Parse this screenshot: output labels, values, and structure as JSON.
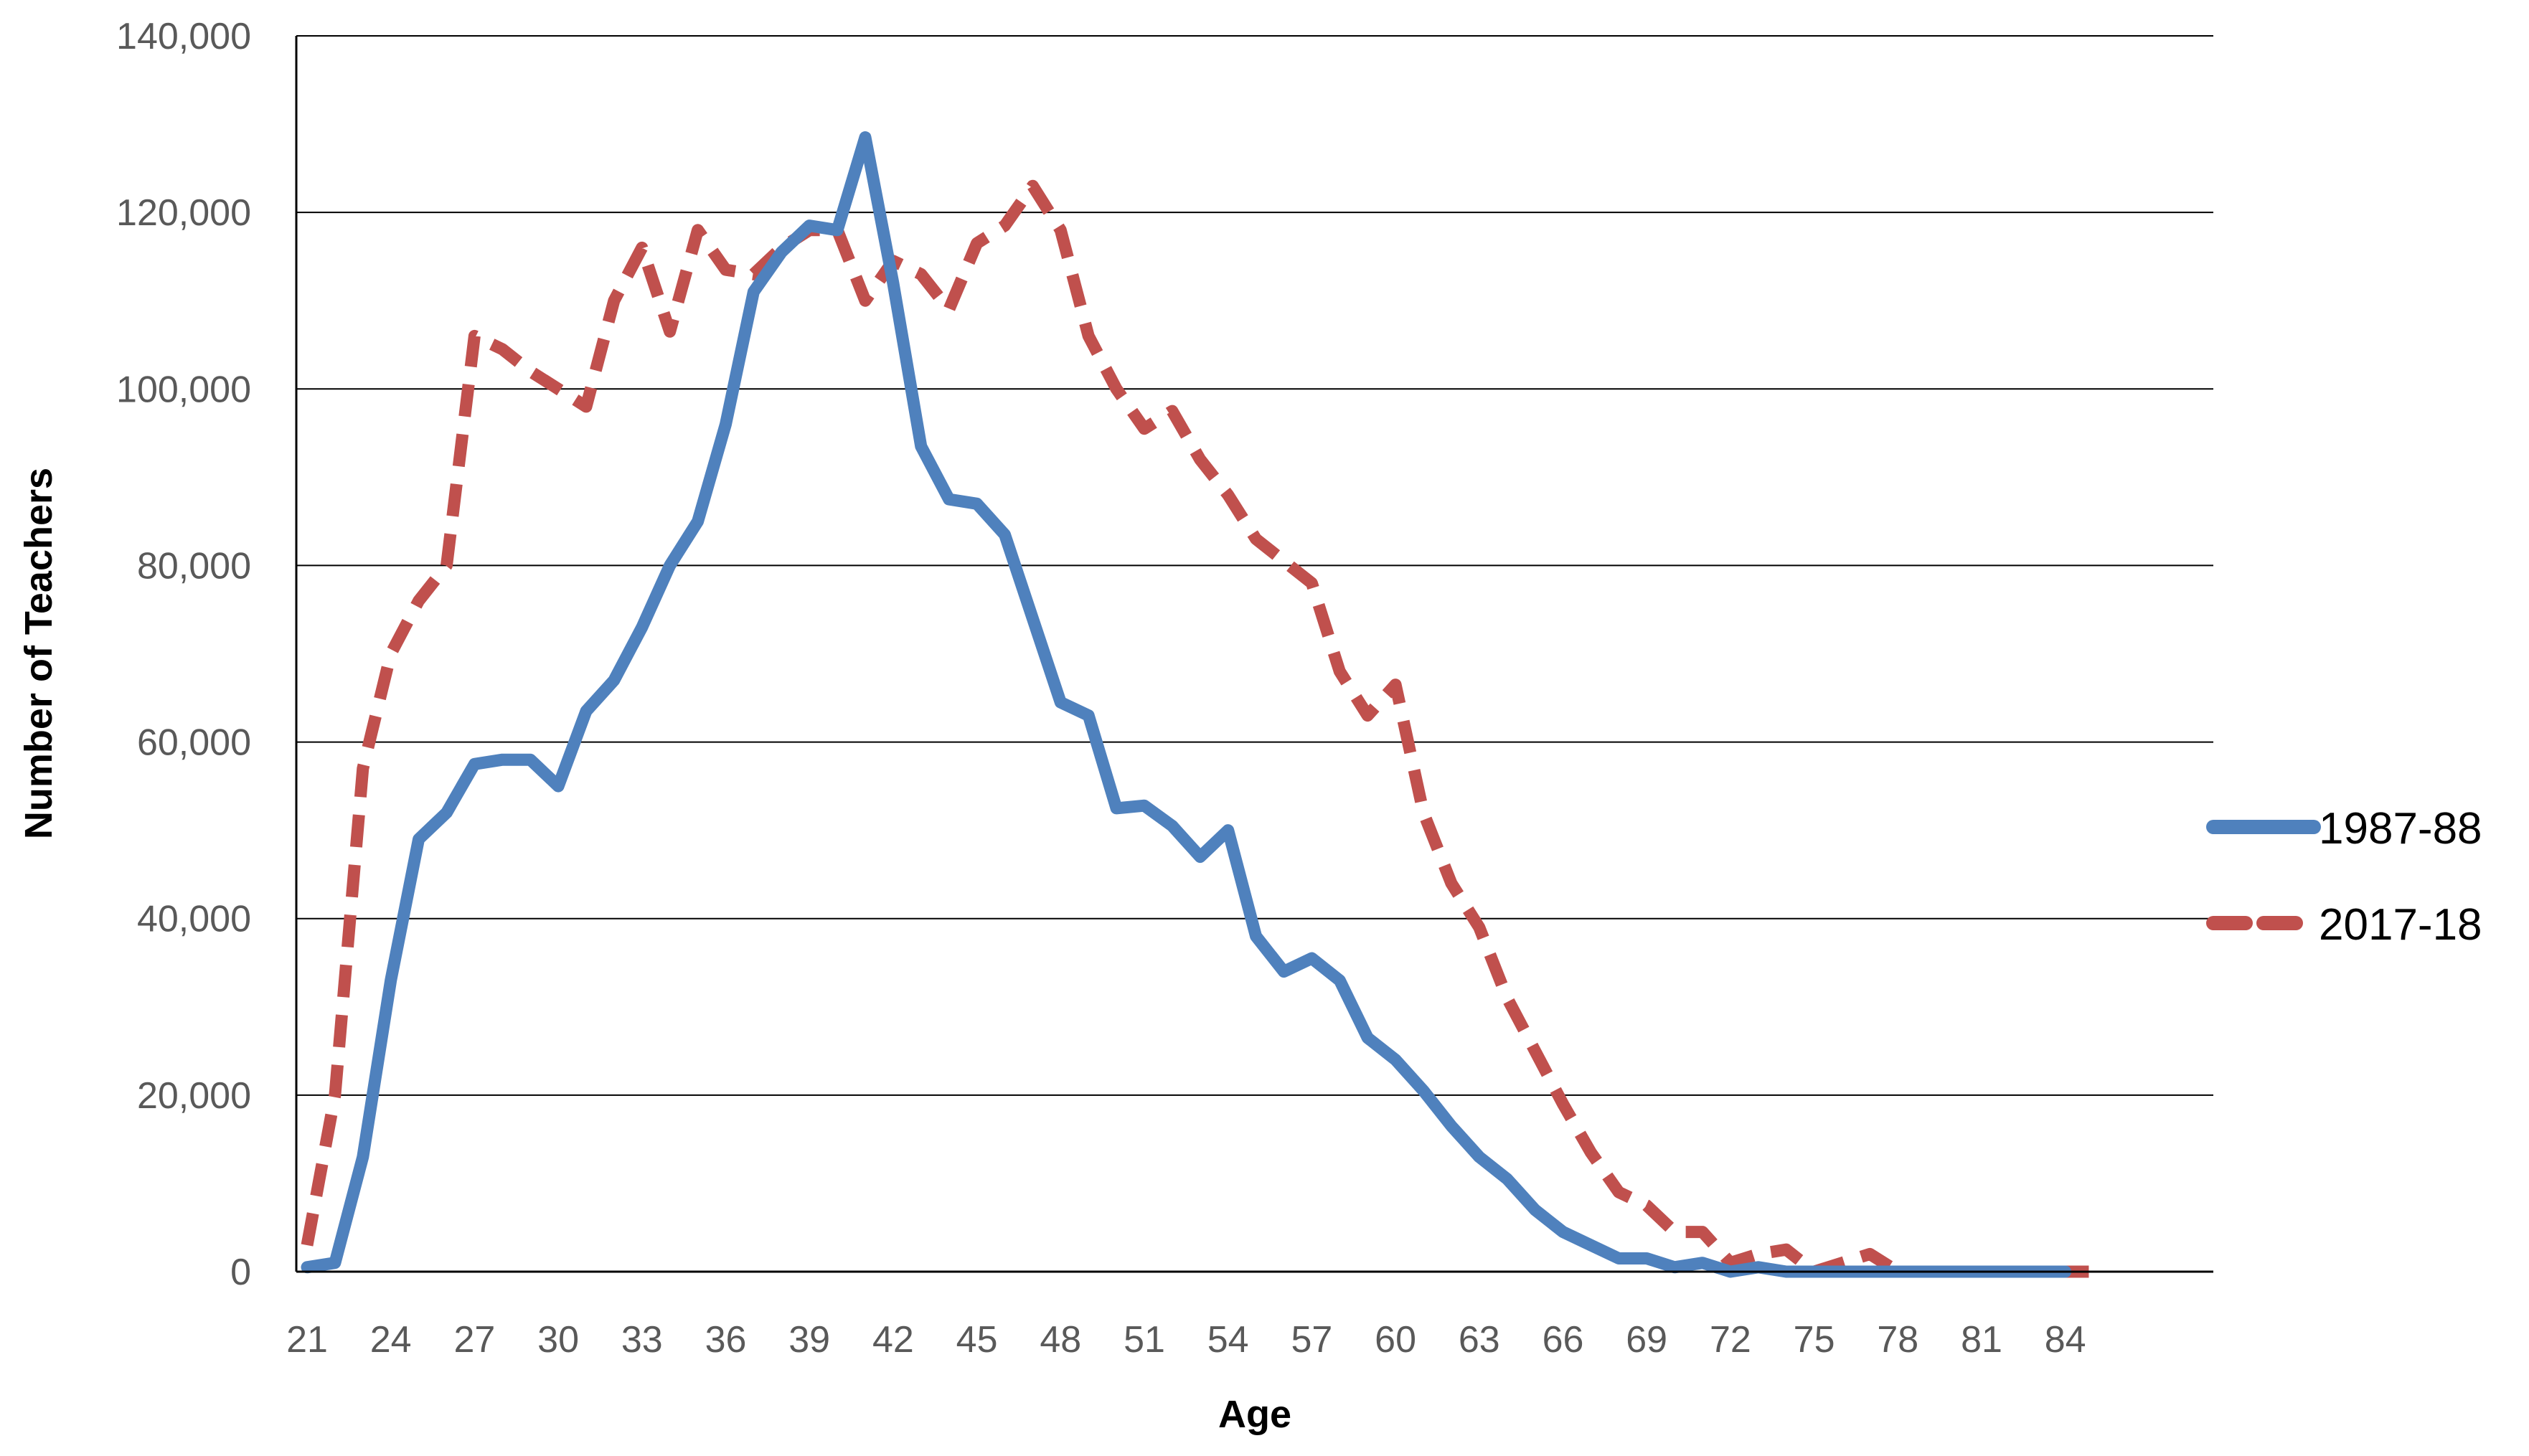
{
  "chart_data": {
    "type": "line",
    "title": "",
    "xlabel": "Age",
    "ylabel": "Number of Teachers",
    "xlim": [
      21,
      85
    ],
    "ylim": [
      0,
      140000
    ],
    "grid": true,
    "legend_position": "right",
    "x_ticks": [
      21,
      24,
      27,
      30,
      33,
      36,
      39,
      42,
      45,
      48,
      51,
      54,
      57,
      60,
      63,
      66,
      69,
      72,
      75,
      78,
      81,
      84
    ],
    "y_ticks": [
      0,
      20000,
      40000,
      60000,
      80000,
      100000,
      120000,
      140000
    ],
    "y_tick_labels": [
      "0",
      "20,000",
      "40,000",
      "60,000",
      "80,000",
      "100,000",
      "120,000",
      "140,000"
    ],
    "x": [
      21,
      22,
      23,
      24,
      25,
      26,
      27,
      28,
      29,
      30,
      31,
      32,
      33,
      34,
      35,
      36,
      37,
      38,
      39,
      40,
      41,
      42,
      43,
      44,
      45,
      46,
      47,
      48,
      49,
      50,
      51,
      52,
      53,
      54,
      55,
      56,
      57,
      58,
      59,
      60,
      61,
      62,
      63,
      64,
      65,
      66,
      67,
      68,
      69,
      70,
      71,
      72,
      73,
      74,
      75,
      76,
      77,
      78,
      79,
      80,
      81,
      82,
      83,
      84,
      85
    ],
    "series": [
      {
        "name": "1987-88",
        "color": "#4F81BD",
        "style": "solid",
        "x": [
          21,
          22,
          23,
          24,
          25,
          26,
          27,
          28,
          29,
          30,
          31,
          32,
          33,
          34,
          35,
          36,
          37,
          38,
          39,
          40,
          41,
          42,
          43,
          44,
          45,
          46,
          47,
          48,
          49,
          50,
          51,
          52,
          53,
          54,
          55,
          56,
          57,
          58,
          59,
          60,
          61,
          62,
          63,
          64,
          65,
          66,
          67,
          68,
          69,
          70,
          71,
          72,
          73,
          74,
          75,
          76,
          77,
          78,
          79,
          80,
          81,
          82,
          83,
          84
        ],
        "values": [
          500,
          1000,
          13000,
          33000,
          49000,
          52000,
          57500,
          58000,
          58000,
          55000,
          63500,
          67000,
          73000,
          80000,
          85000,
          96000,
          111000,
          115500,
          118500,
          118000,
          128500,
          112000,
          93500,
          87500,
          87000,
          83500,
          74000,
          64500,
          63000,
          52500,
          52800,
          50500,
          47000,
          50000,
          38000,
          34000,
          35500,
          33000,
          26500,
          24000,
          20500,
          16500,
          13000,
          10500,
          7000,
          4500,
          3000,
          1500,
          1500,
          500,
          1000,
          0,
          500,
          0,
          0,
          0,
          0,
          0,
          0,
          0,
          0,
          0,
          0,
          0
        ]
      },
      {
        "name": "2017-18",
        "color": "#C0504D",
        "style": "dashed",
        "x": [
          21,
          22,
          23,
          24,
          25,
          26,
          27,
          28,
          29,
          30,
          31,
          32,
          33,
          34,
          35,
          36,
          37,
          38,
          39,
          40,
          41,
          42,
          43,
          44,
          45,
          46,
          47,
          48,
          49,
          50,
          51,
          52,
          53,
          54,
          55,
          56,
          57,
          58,
          59,
          60,
          61,
          62,
          63,
          64,
          65,
          66,
          67,
          68,
          69,
          70,
          71,
          72,
          73,
          74,
          75,
          76,
          77,
          78,
          79,
          80,
          81,
          82,
          83,
          84,
          85
        ],
        "values": [
          3000,
          20000,
          57000,
          70000,
          76000,
          80000,
          106000,
          104500,
          102000,
          100000,
          98000,
          110000,
          116000,
          106500,
          118000,
          113500,
          113000,
          116000,
          118000,
          118000,
          110000,
          114500,
          113000,
          109000,
          116500,
          118500,
          123000,
          118000,
          106000,
          100000,
          95500,
          97500,
          92000,
          88000,
          83000,
          80500,
          78000,
          68000,
          63000,
          66500,
          52000,
          44000,
          39000,
          31000,
          25000,
          19000,
          13500,
          9000,
          7500,
          4500,
          4500,
          1000,
          2000,
          2500,
          0,
          1000,
          2000,
          0,
          0,
          0,
          0,
          0,
          0,
          0,
          0
        ]
      }
    ]
  }
}
